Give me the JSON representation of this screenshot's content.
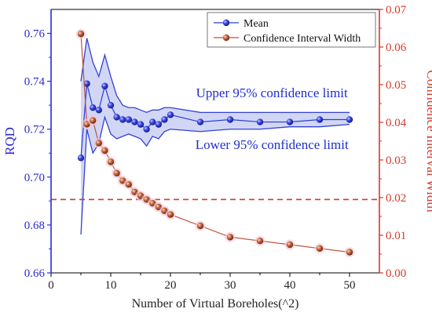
{
  "chart_data": {
    "type": "line",
    "xlabel": "Number of Virtual Boreholes(^2)",
    "ylabel_left": "RQD",
    "ylabel_right": "Confidence Interval Width",
    "xlim": [
      0,
      55
    ],
    "ylim_left": [
      0.66,
      0.77
    ],
    "ylim_right": [
      0.0,
      0.07
    ],
    "x_ticks": [
      0,
      10,
      20,
      30,
      40,
      50
    ],
    "y_left_ticks": [
      0.66,
      0.68,
      0.7,
      0.72,
      0.74,
      0.76
    ],
    "y_right_ticks": [
      0.0,
      0.01,
      0.02,
      0.03,
      0.04,
      0.05,
      0.06,
      0.07
    ],
    "legend_position": "top-right",
    "series": [
      {
        "name": "Mean",
        "axis": "left",
        "color": "#2b3bd6",
        "x": [
          5,
          6,
          7,
          8,
          9,
          10,
          11,
          12,
          13,
          14,
          15,
          16,
          17,
          18,
          19,
          20,
          25,
          30,
          35,
          40,
          45,
          50
        ],
        "values": [
          0.708,
          0.739,
          0.729,
          0.728,
          0.738,
          0.73,
          0.725,
          0.724,
          0.724,
          0.723,
          0.722,
          0.72,
          0.723,
          0.722,
          0.724,
          0.726,
          0.723,
          0.724,
          0.723,
          0.723,
          0.724,
          0.724
        ]
      },
      {
        "name": "Confidence Interval Width",
        "axis": "right",
        "color": "#c0503a",
        "x": [
          5,
          6,
          7,
          8,
          9,
          10,
          11,
          12,
          13,
          14,
          15,
          16,
          17,
          18,
          19,
          20,
          25,
          30,
          35,
          40,
          45,
          50
        ],
        "values": [
          0.0635,
          0.0395,
          0.0405,
          0.0345,
          0.0325,
          0.0295,
          0.0265,
          0.0245,
          0.0235,
          0.0215,
          0.0205,
          0.0195,
          0.0185,
          0.0175,
          0.0165,
          0.0155,
          0.0125,
          0.0095,
          0.0085,
          0.0075,
          0.0065,
          0.0055
        ]
      }
    ],
    "confidence_band": {
      "axis": "left",
      "x": [
        5,
        6,
        7,
        8,
        9,
        10,
        11,
        12,
        13,
        14,
        15,
        16,
        17,
        18,
        19,
        20,
        25,
        30,
        35,
        40,
        45,
        50
      ],
      "upper": [
        0.74,
        0.758,
        0.748,
        0.742,
        0.751,
        0.742,
        0.734,
        0.73,
        0.729,
        0.729,
        0.728,
        0.727,
        0.728,
        0.728,
        0.729,
        0.729,
        0.727,
        0.727,
        0.727,
        0.727,
        0.727,
        0.727
      ],
      "lower": [
        0.676,
        0.72,
        0.71,
        0.714,
        0.725,
        0.718,
        0.716,
        0.717,
        0.718,
        0.717,
        0.716,
        0.713,
        0.717,
        0.716,
        0.719,
        0.72,
        0.719,
        0.72,
        0.72,
        0.721,
        0.721,
        0.722
      ],
      "fill_color": "#c9cff3",
      "line_color": "#3341d6"
    },
    "reference_line": {
      "axis": "right",
      "y": 0.0195,
      "color": "#d23a2a",
      "style": "dashed"
    },
    "annotations": [
      {
        "text": "Upper 95% confidence limit",
        "x": 37,
        "y_left": 0.7333
      },
      {
        "text": "Lower 95% confidence limit",
        "x": 37,
        "y_left": 0.7117
      }
    ]
  }
}
